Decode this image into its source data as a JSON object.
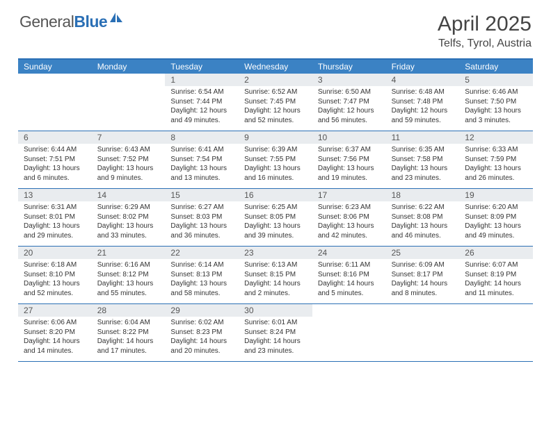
{
  "brand": {
    "part1": "General",
    "part2": "Blue"
  },
  "title": "April 2025",
  "location": "Telfs, Tyrol, Austria",
  "colors": {
    "header_bg": "#3b82c4",
    "border": "#2a6fb5",
    "daynum_bg": "#e9ecef",
    "text": "#333333",
    "title_color": "#444444"
  },
  "day_names": [
    "Sunday",
    "Monday",
    "Tuesday",
    "Wednesday",
    "Thursday",
    "Friday",
    "Saturday"
  ],
  "grid": {
    "leading_blanks": 2,
    "trailing_blanks": 3
  },
  "days": [
    {
      "n": 1,
      "sunrise": "6:54 AM",
      "sunset": "7:44 PM",
      "daylight": "12 hours and 49 minutes."
    },
    {
      "n": 2,
      "sunrise": "6:52 AM",
      "sunset": "7:45 PM",
      "daylight": "12 hours and 52 minutes."
    },
    {
      "n": 3,
      "sunrise": "6:50 AM",
      "sunset": "7:47 PM",
      "daylight": "12 hours and 56 minutes."
    },
    {
      "n": 4,
      "sunrise": "6:48 AM",
      "sunset": "7:48 PM",
      "daylight": "12 hours and 59 minutes."
    },
    {
      "n": 5,
      "sunrise": "6:46 AM",
      "sunset": "7:50 PM",
      "daylight": "13 hours and 3 minutes."
    },
    {
      "n": 6,
      "sunrise": "6:44 AM",
      "sunset": "7:51 PM",
      "daylight": "13 hours and 6 minutes."
    },
    {
      "n": 7,
      "sunrise": "6:43 AM",
      "sunset": "7:52 PM",
      "daylight": "13 hours and 9 minutes."
    },
    {
      "n": 8,
      "sunrise": "6:41 AM",
      "sunset": "7:54 PM",
      "daylight": "13 hours and 13 minutes."
    },
    {
      "n": 9,
      "sunrise": "6:39 AM",
      "sunset": "7:55 PM",
      "daylight": "13 hours and 16 minutes."
    },
    {
      "n": 10,
      "sunrise": "6:37 AM",
      "sunset": "7:56 PM",
      "daylight": "13 hours and 19 minutes."
    },
    {
      "n": 11,
      "sunrise": "6:35 AM",
      "sunset": "7:58 PM",
      "daylight": "13 hours and 23 minutes."
    },
    {
      "n": 12,
      "sunrise": "6:33 AM",
      "sunset": "7:59 PM",
      "daylight": "13 hours and 26 minutes."
    },
    {
      "n": 13,
      "sunrise": "6:31 AM",
      "sunset": "8:01 PM",
      "daylight": "13 hours and 29 minutes."
    },
    {
      "n": 14,
      "sunrise": "6:29 AM",
      "sunset": "8:02 PM",
      "daylight": "13 hours and 33 minutes."
    },
    {
      "n": 15,
      "sunrise": "6:27 AM",
      "sunset": "8:03 PM",
      "daylight": "13 hours and 36 minutes."
    },
    {
      "n": 16,
      "sunrise": "6:25 AM",
      "sunset": "8:05 PM",
      "daylight": "13 hours and 39 minutes."
    },
    {
      "n": 17,
      "sunrise": "6:23 AM",
      "sunset": "8:06 PM",
      "daylight": "13 hours and 42 minutes."
    },
    {
      "n": 18,
      "sunrise": "6:22 AM",
      "sunset": "8:08 PM",
      "daylight": "13 hours and 46 minutes."
    },
    {
      "n": 19,
      "sunrise": "6:20 AM",
      "sunset": "8:09 PM",
      "daylight": "13 hours and 49 minutes."
    },
    {
      "n": 20,
      "sunrise": "6:18 AM",
      "sunset": "8:10 PM",
      "daylight": "13 hours and 52 minutes."
    },
    {
      "n": 21,
      "sunrise": "6:16 AM",
      "sunset": "8:12 PM",
      "daylight": "13 hours and 55 minutes."
    },
    {
      "n": 22,
      "sunrise": "6:14 AM",
      "sunset": "8:13 PM",
      "daylight": "13 hours and 58 minutes."
    },
    {
      "n": 23,
      "sunrise": "6:13 AM",
      "sunset": "8:15 PM",
      "daylight": "14 hours and 2 minutes."
    },
    {
      "n": 24,
      "sunrise": "6:11 AM",
      "sunset": "8:16 PM",
      "daylight": "14 hours and 5 minutes."
    },
    {
      "n": 25,
      "sunrise": "6:09 AM",
      "sunset": "8:17 PM",
      "daylight": "14 hours and 8 minutes."
    },
    {
      "n": 26,
      "sunrise": "6:07 AM",
      "sunset": "8:19 PM",
      "daylight": "14 hours and 11 minutes."
    },
    {
      "n": 27,
      "sunrise": "6:06 AM",
      "sunset": "8:20 PM",
      "daylight": "14 hours and 14 minutes."
    },
    {
      "n": 28,
      "sunrise": "6:04 AM",
      "sunset": "8:22 PM",
      "daylight": "14 hours and 17 minutes."
    },
    {
      "n": 29,
      "sunrise": "6:02 AM",
      "sunset": "8:23 PM",
      "daylight": "14 hours and 20 minutes."
    },
    {
      "n": 30,
      "sunrise": "6:01 AM",
      "sunset": "8:24 PM",
      "daylight": "14 hours and 23 minutes."
    }
  ],
  "labels": {
    "sunrise": "Sunrise: ",
    "sunset": "Sunset: ",
    "daylight": "Daylight: "
  }
}
